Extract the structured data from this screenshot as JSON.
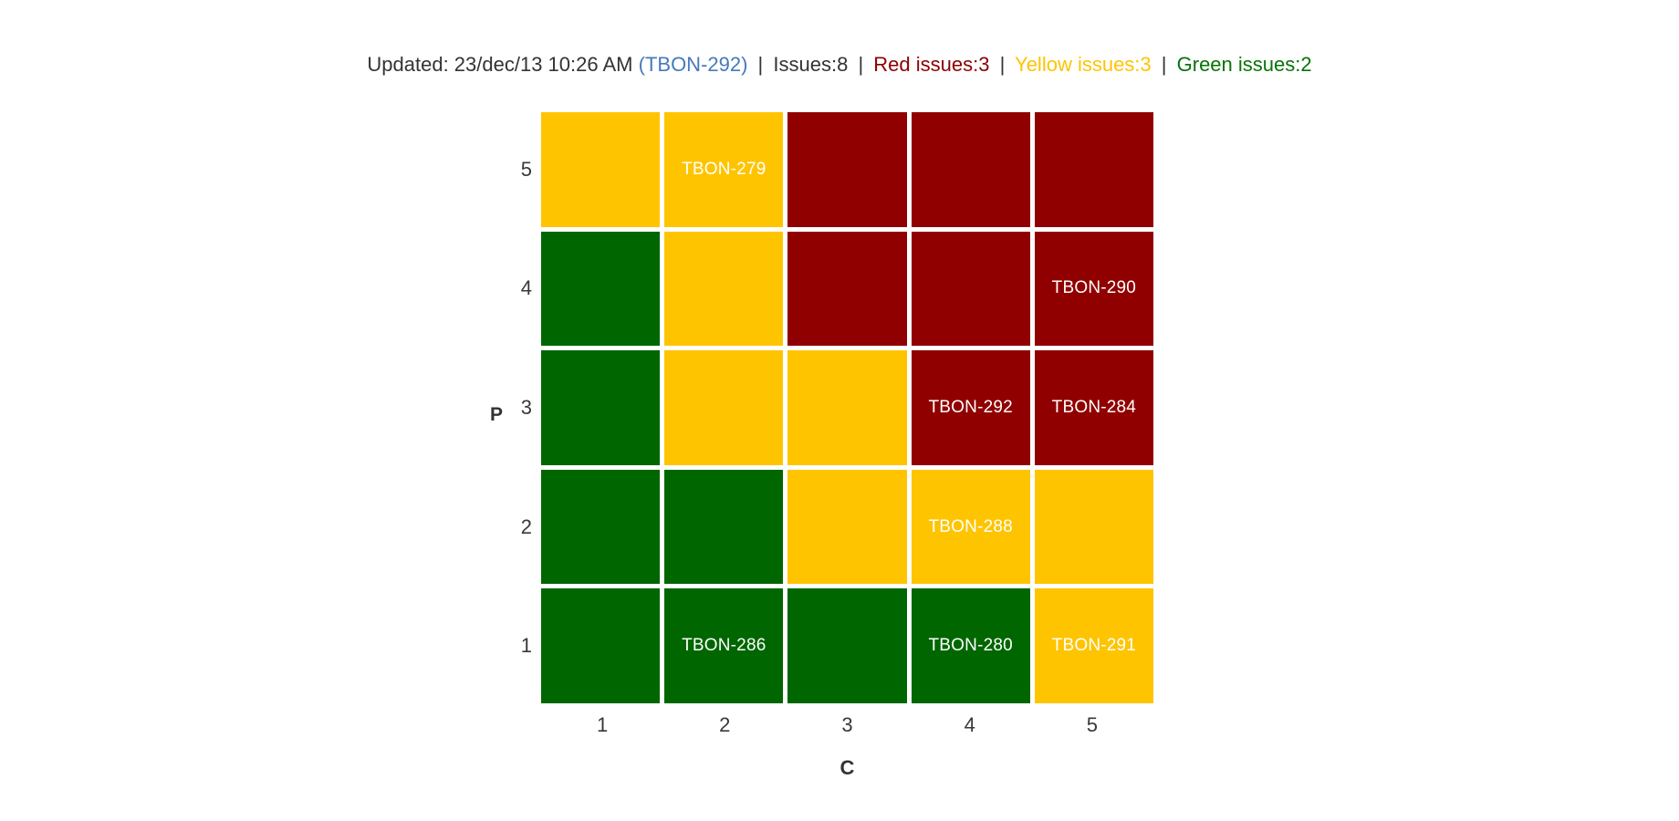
{
  "header": {
    "updated_prefix": "Updated: 23/dec/13 10:26 AM",
    "issue_link": "(TBON-292)",
    "separator": "|",
    "issues_total": "Issues:8",
    "red_issues": "Red issues:3",
    "yellow_issues": "Yellow issues:3",
    "green_issues": "Green issues:2"
  },
  "colors": {
    "background": "#ffffff",
    "header_text": "#333333",
    "link_blue": "#4679bd",
    "red_text": "#8b0000",
    "yellow_text": "#ffc400",
    "green_text": "#077307",
    "tick_text": "#383838",
    "cell_label_text": "#ffffff"
  },
  "chart_data": {
    "type": "heatmap",
    "xlabel": "C",
    "ylabel": "P",
    "x_ticks": [
      "1",
      "2",
      "3",
      "4",
      "5"
    ],
    "y_ticks": [
      "5",
      "4",
      "3",
      "2",
      "1"
    ],
    "counts": {
      "issues": 8,
      "red": 3,
      "yellow": 3,
      "green": 2
    },
    "cell_colors": {
      "green": "#006600",
      "yellow": "#ffc400",
      "red": "#910000"
    },
    "rows": [
      {
        "p": "5",
        "cells": [
          {
            "color": "yellow",
            "issue": ""
          },
          {
            "color": "yellow",
            "issue": "TBON-279"
          },
          {
            "color": "red",
            "issue": ""
          },
          {
            "color": "red",
            "issue": ""
          },
          {
            "color": "red",
            "issue": ""
          }
        ]
      },
      {
        "p": "4",
        "cells": [
          {
            "color": "green",
            "issue": ""
          },
          {
            "color": "yellow",
            "issue": ""
          },
          {
            "color": "red",
            "issue": ""
          },
          {
            "color": "red",
            "issue": ""
          },
          {
            "color": "red",
            "issue": "TBON-290"
          }
        ]
      },
      {
        "p": "3",
        "cells": [
          {
            "color": "green",
            "issue": ""
          },
          {
            "color": "yellow",
            "issue": ""
          },
          {
            "color": "yellow",
            "issue": ""
          },
          {
            "color": "red",
            "issue": "TBON-292"
          },
          {
            "color": "red",
            "issue": "TBON-284"
          }
        ]
      },
      {
        "p": "2",
        "cells": [
          {
            "color": "green",
            "issue": ""
          },
          {
            "color": "green",
            "issue": ""
          },
          {
            "color": "yellow",
            "issue": ""
          },
          {
            "color": "yellow",
            "issue": "TBON-288"
          },
          {
            "color": "yellow",
            "issue": ""
          }
        ]
      },
      {
        "p": "1",
        "cells": [
          {
            "color": "green",
            "issue": ""
          },
          {
            "color": "green",
            "issue": "TBON-286"
          },
          {
            "color": "green",
            "issue": ""
          },
          {
            "color": "green",
            "issue": "TBON-280"
          },
          {
            "color": "yellow",
            "issue": "TBON-291"
          }
        ]
      }
    ]
  }
}
